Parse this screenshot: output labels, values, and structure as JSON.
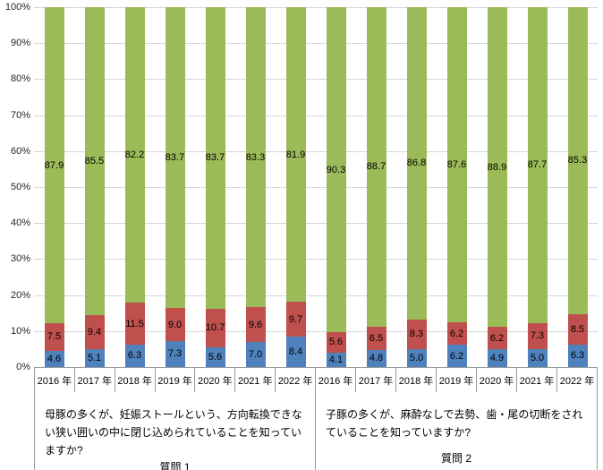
{
  "colors": {
    "series_bottom_blue": "#4F81BD",
    "series_middle_red": "#C0504D",
    "series_top_green": "#9BBB59",
    "gridline": "#D6D6D6",
    "axis_table_line": "#9A9A9A",
    "label_text": "#000000"
  },
  "y_axis": {
    "tick_labels": [
      "100%",
      "90%",
      "80%",
      "70%",
      "60%",
      "50%",
      "40%",
      "30%",
      "20%",
      "10%",
      "0%"
    ]
  },
  "chart_data": {
    "type": "bar",
    "subtype": "100-percent-stacked-column",
    "title": "",
    "xlabel": "",
    "ylabel": "",
    "ylim": [
      0,
      100
    ],
    "grid": true,
    "legend_position": "none",
    "groups": [
      {
        "label": "質問 1",
        "question": "母豚の多くが、妊娠ストールという、方向転換できない狭い囲いの中に閉じ込められていることを知っていますか?",
        "categories": [
          "2016 年",
          "2017 年",
          "2018 年",
          "2019 年",
          "2020 年",
          "2021 年",
          "2022 年"
        ],
        "series": [
          {
            "name": "bottom-blue",
            "color": "#4F81BD",
            "values": [
              4.6,
              5.1,
              6.3,
              7.3,
              5.6,
              7.0,
              8.4
            ]
          },
          {
            "name": "middle-red",
            "color": "#C0504D",
            "values": [
              7.5,
              9.4,
              11.5,
              9.0,
              10.7,
              9.6,
              9.7
            ]
          },
          {
            "name": "top-green",
            "color": "#9BBB59",
            "values": [
              87.9,
              85.5,
              82.2,
              83.7,
              83.7,
              83.3,
              81.9
            ]
          }
        ]
      },
      {
        "label": "質問 2",
        "question": "子豚の多くが、麻酔なしで去勢、歯・尾の切断をされていることを知っていますか?",
        "categories": [
          "2016 年",
          "2017 年",
          "2018 年",
          "2019 年",
          "2020 年",
          "2021 年",
          "2022 年"
        ],
        "series": [
          {
            "name": "bottom-blue",
            "color": "#4F81BD",
            "values": [
              4.1,
              4.8,
              5.0,
              6.2,
              4.9,
              5.0,
              6.3
            ]
          },
          {
            "name": "middle-red",
            "color": "#C0504D",
            "values": [
              5.6,
              6.5,
              8.3,
              6.2,
              6.2,
              7.3,
              8.5
            ]
          },
          {
            "name": "top-green",
            "color": "#9BBB59",
            "values": [
              90.3,
              88.7,
              86.8,
              87.6,
              88.9,
              87.7,
              85.3
            ]
          }
        ]
      }
    ]
  }
}
